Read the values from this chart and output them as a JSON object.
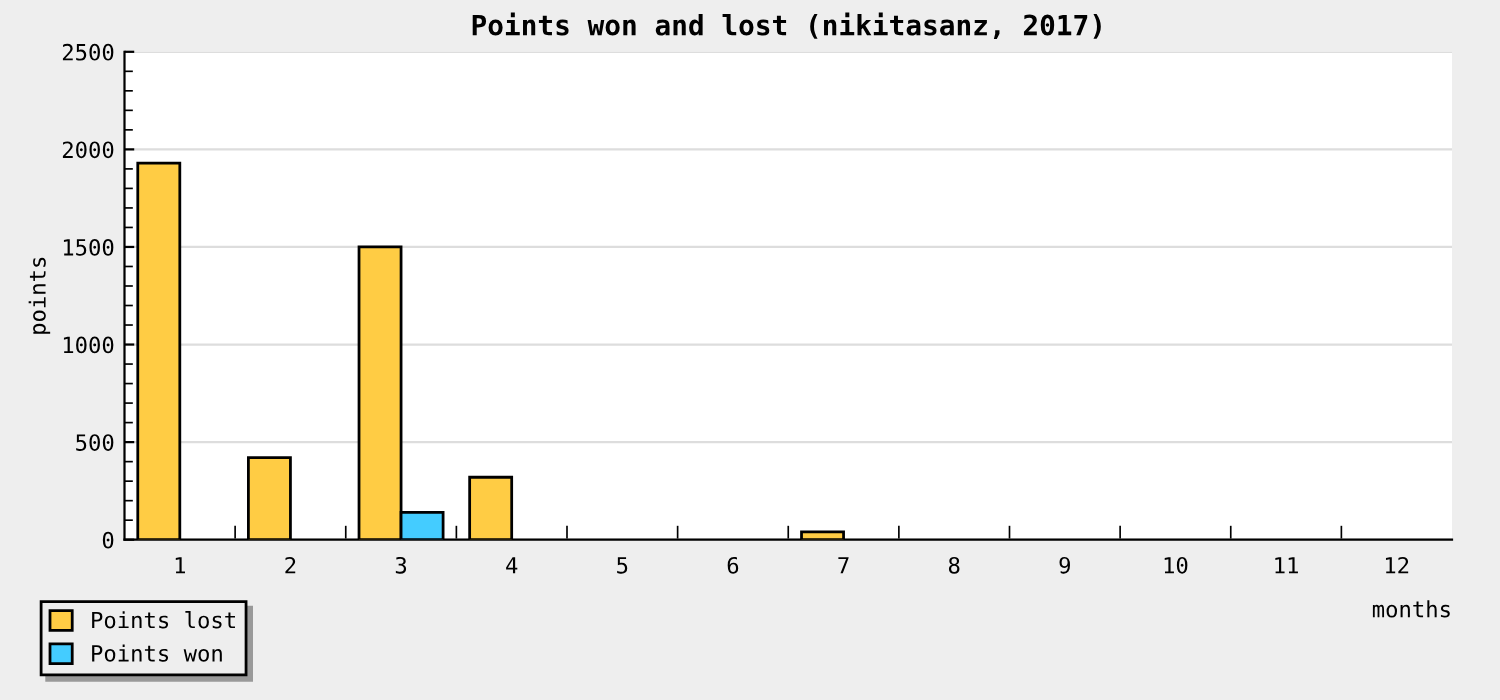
{
  "chart_data": {
    "type": "bar",
    "title": "Points won and lost (nikitasanz, 2017)",
    "xlabel": "months",
    "ylabel": "points",
    "categories": [
      "1",
      "2",
      "3",
      "4",
      "5",
      "6",
      "7",
      "8",
      "9",
      "10",
      "11",
      "12"
    ],
    "series": [
      {
        "name": "Points lost",
        "color": "#ffcc44",
        "values": [
          1930,
          420,
          1500,
          320,
          0,
          0,
          40,
          0,
          0,
          0,
          0,
          0
        ]
      },
      {
        "name": "Points won",
        "color": "#44ccff",
        "values": [
          0,
          0,
          140,
          0,
          0,
          0,
          0,
          0,
          0,
          0,
          0,
          0
        ]
      }
    ],
    "ylim": [
      0,
      2500
    ],
    "yticks": [
      0,
      500,
      1000,
      1500,
      2000,
      2500
    ],
    "grid": "y",
    "legend": "bottom left"
  }
}
